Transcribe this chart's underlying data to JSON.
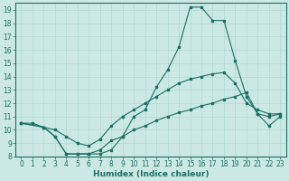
{
  "xlabel": "Humidex (Indice chaleur)",
  "ylabel": "",
  "xlim": [
    -0.5,
    23.5
  ],
  "ylim": [
    8,
    19.5
  ],
  "xticks": [
    0,
    1,
    2,
    3,
    4,
    5,
    6,
    7,
    8,
    9,
    10,
    11,
    12,
    13,
    14,
    15,
    16,
    17,
    18,
    19,
    20,
    21,
    22,
    23
  ],
  "yticks": [
    8,
    9,
    10,
    11,
    12,
    13,
    14,
    15,
    16,
    17,
    18,
    19
  ],
  "bg_color": "#cce8e4",
  "grid_color": "#b0d8d2",
  "line_color": "#1a6e64",
  "line1_x": [
    0,
    1,
    2,
    3,
    4,
    5,
    6,
    7,
    8,
    9,
    10,
    11,
    12,
    13,
    14,
    15,
    16,
    17,
    18,
    19,
    20,
    21,
    22,
    23
  ],
  "line1_y": [
    10.5,
    10.5,
    10.2,
    9.5,
    8.2,
    8.2,
    8.2,
    8.2,
    8.5,
    9.5,
    11.0,
    11.5,
    13.2,
    14.5,
    16.2,
    19.2,
    19.2,
    18.2,
    18.2,
    15.2,
    12.5,
    11.2,
    10.3,
    11.0
  ],
  "line2_x": [
    0,
    2,
    3,
    4,
    5,
    6,
    7,
    8,
    9,
    10,
    11,
    12,
    13,
    14,
    15,
    16,
    17,
    18,
    19,
    20,
    21,
    22,
    23
  ],
  "line2_y": [
    10.5,
    10.2,
    10.0,
    9.5,
    9.0,
    8.8,
    9.3,
    10.3,
    11.0,
    11.5,
    12.0,
    12.5,
    13.0,
    13.5,
    13.8,
    14.0,
    14.2,
    14.3,
    13.5,
    12.0,
    11.5,
    11.2,
    11.2
  ],
  "line3_x": [
    0,
    2,
    3,
    4,
    5,
    6,
    7,
    8,
    9,
    10,
    11,
    12,
    13,
    14,
    15,
    16,
    17,
    18,
    19,
    20,
    21,
    22,
    23
  ],
  "line3_y": [
    10.5,
    10.2,
    9.5,
    8.2,
    8.2,
    8.2,
    8.5,
    9.2,
    9.5,
    10.0,
    10.3,
    10.7,
    11.0,
    11.3,
    11.5,
    11.8,
    12.0,
    12.3,
    12.5,
    12.8,
    11.2,
    11.0,
    11.2
  ]
}
